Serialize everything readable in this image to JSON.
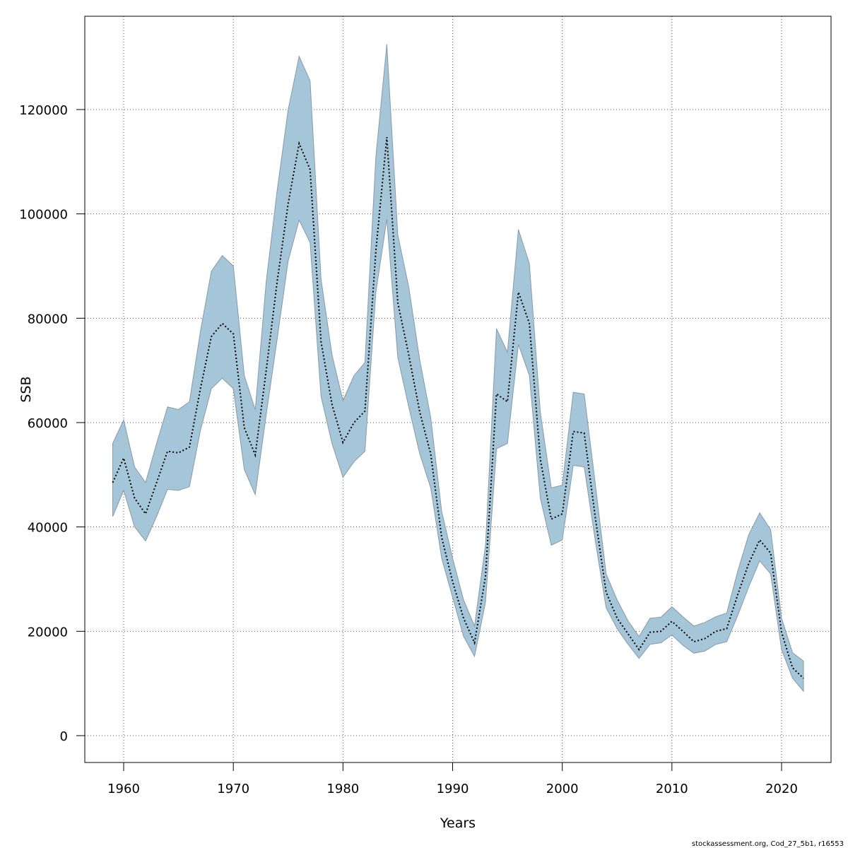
{
  "chart_data": {
    "type": "line",
    "xlabel": "Years",
    "ylabel": "SSB",
    "xlim": [
      1956.5,
      1964.7
    ],
    "ylim": [
      -5200,
      138000
    ],
    "xticks": [
      1960,
      1970,
      1980,
      1990,
      2000,
      2010,
      2020
    ],
    "yticks": [
      0,
      20000,
      40000,
      60000,
      80000,
      100000,
      120000
    ],
    "grid": true,
    "footer": "stockassessment.org, Cod_27_5b1, r16553",
    "colors": {
      "band": "#a5c5d8",
      "band_edge": "#8a9aa6",
      "line": "#000000",
      "grid": "#555555"
    },
    "x": [
      1959,
      1960,
      1961,
      1962,
      1963,
      1964,
      1965,
      1966,
      1967,
      1968,
      1969,
      1970,
      1971,
      1972,
      1973,
      1974,
      1975,
      1976,
      1977,
      1978,
      1979,
      1980,
      1981,
      1982,
      1983,
      1984,
      1985,
      1986,
      1987,
      1988,
      1989,
      1990,
      1991,
      1992,
      1993,
      1994,
      1995,
      1996,
      1997,
      1998,
      1999,
      2000,
      2001,
      2002,
      2003,
      2004,
      2005,
      2006,
      2007,
      2008,
      2009,
      2010,
      2011,
      2012,
      2013,
      2014,
      2015,
      2016,
      2017,
      2018,
      2019,
      2020,
      2021,
      2022
    ],
    "series": [
      {
        "role": "estimate",
        "values": [
          48500,
          53200,
          45500,
          42500,
          48500,
          54500,
          54200,
          55300,
          66500,
          76500,
          79000,
          77000,
          59000,
          53800,
          70000,
          87000,
          102000,
          113500,
          108500,
          75500,
          63500,
          56200,
          60000,
          62200,
          93000,
          114700,
          83000,
          73000,
          62000,
          54000,
          38000,
          29500,
          22500,
          17800,
          30500,
          65500,
          64000,
          85000,
          79000,
          53000,
          41500,
          42500,
          58300,
          58000,
          42000,
          27500,
          22500,
          19500,
          16500,
          19800,
          20000,
          21900,
          20000,
          18000,
          18600,
          20000,
          20500,
          27000,
          33000,
          37500,
          35000,
          19800,
          13000,
          11000
        ]
      },
      {
        "role": "lower",
        "values": [
          42000,
          47000,
          40000,
          37300,
          42000,
          47200,
          47000,
          47700,
          58500,
          66500,
          68500,
          66500,
          51000,
          46200,
          61500,
          76000,
          91000,
          98800,
          94500,
          65000,
          56000,
          49500,
          52500,
          54500,
          85000,
          99000,
          72500,
          63000,
          54000,
          47500,
          34000,
          26500,
          19000,
          15200,
          25500,
          55000,
          56000,
          75000,
          69000,
          45500,
          36500,
          37500,
          51800,
          51500,
          37500,
          24500,
          20500,
          17500,
          14800,
          17500,
          17800,
          19300,
          17300,
          15800,
          16200,
          17500,
          18000,
          23000,
          28500,
          33500,
          31000,
          16500,
          11000,
          8500
        ]
      },
      {
        "role": "upper",
        "values": [
          56000,
          60500,
          51500,
          48500,
          56000,
          63000,
          62500,
          64000,
          77500,
          89000,
          92000,
          90000,
          69000,
          62500,
          87000,
          104500,
          120000,
          130200,
          125500,
          87500,
          73000,
          64200,
          69000,
          71500,
          111000,
          132500,
          96000,
          86000,
          72000,
          61000,
          43000,
          34000,
          26000,
          21000,
          36500,
          78000,
          73500,
          97000,
          90500,
          62000,
          47500,
          48000,
          65800,
          65500,
          48500,
          31000,
          26000,
          22000,
          19000,
          22500,
          22700,
          24700,
          22800,
          21000,
          21700,
          22800,
          23500,
          31500,
          38500,
          42700,
          39500,
          22500,
          15900,
          14300
        ]
      }
    ]
  }
}
